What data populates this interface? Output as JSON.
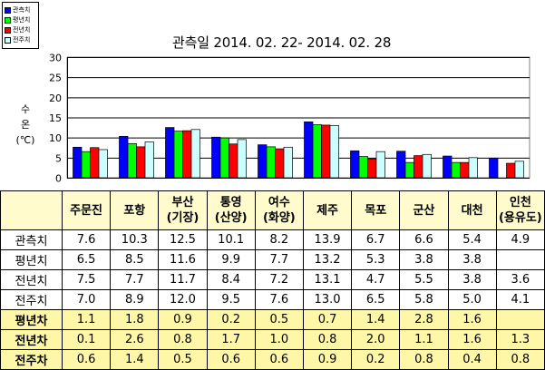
{
  "chart_data": {
    "type": "bar",
    "title": "관측일 2014. 02. 22- 2014. 02. 28",
    "ylabel": [
      "수",
      "온",
      "(℃)"
    ],
    "ylim": [
      0,
      30
    ],
    "yticks": [
      0,
      5,
      10,
      15,
      20,
      25,
      30
    ],
    "grid": true,
    "legend_position": "top-left",
    "categories": [
      "주문진",
      "포항",
      "부산 (기장)",
      "통영 (산양)",
      "여수 (화양)",
      "제주",
      "목포",
      "군산",
      "대천",
      "인천 (용유도)"
    ],
    "series": [
      {
        "name": "관측치",
        "color": "#0000ff",
        "values": [
          7.6,
          10.3,
          12.5,
          10.1,
          8.2,
          13.9,
          6.7,
          6.6,
          5.4,
          4.9
        ]
      },
      {
        "name": "평년치",
        "color": "#00ff00",
        "values": [
          6.5,
          8.5,
          11.6,
          9.9,
          7.7,
          13.2,
          5.3,
          3.8,
          3.8,
          null
        ]
      },
      {
        "name": "전년치",
        "color": "#ff0000",
        "values": [
          7.5,
          7.7,
          11.7,
          8.4,
          7.2,
          13.1,
          4.7,
          5.5,
          3.8,
          3.6
        ]
      },
      {
        "name": "전주치",
        "color": "#ccffff",
        "values": [
          7.0,
          8.9,
          12.0,
          9.5,
          7.6,
          13.0,
          6.5,
          5.8,
          5.0,
          4.1
        ]
      }
    ]
  },
  "table": {
    "headers": [
      [
        "주문진"
      ],
      [
        "포항"
      ],
      [
        "부산",
        "(기장)"
      ],
      [
        "통영",
        "(산양)"
      ],
      [
        "여수",
        "(화양)"
      ],
      [
        "제주"
      ],
      [
        "목포"
      ],
      [
        "군산"
      ],
      [
        "대천"
      ],
      [
        "인천",
        "(용유도)"
      ]
    ],
    "rows": [
      {
        "label": "관측치",
        "kind": "obs",
        "cells": [
          "7.6",
          "10.3",
          "12.5",
          "10.1",
          "8.2",
          "13.9",
          "6.7",
          "6.6",
          "5.4",
          "4.9"
        ]
      },
      {
        "label": "평년치",
        "kind": "obs",
        "cells": [
          "6.5",
          "8.5",
          "11.6",
          "9.9",
          "7.7",
          "13.2",
          "5.3",
          "3.8",
          "3.8",
          ""
        ]
      },
      {
        "label": "전년치",
        "kind": "obs",
        "cells": [
          "7.5",
          "7.7",
          "11.7",
          "8.4",
          "7.2",
          "13.1",
          "4.7",
          "5.5",
          "3.8",
          "3.6"
        ]
      },
      {
        "label": "전주치",
        "kind": "obs",
        "cells": [
          "7.0",
          "8.9",
          "12.0",
          "9.5",
          "7.6",
          "13.0",
          "6.5",
          "5.8",
          "5.0",
          "4.1"
        ]
      },
      {
        "label": "평년차",
        "kind": "diff",
        "cells": [
          "1.1",
          "1.8",
          "0.9",
          "0.2",
          "0.5",
          "0.7",
          "1.4",
          "2.8",
          "1.6",
          ""
        ]
      },
      {
        "label": "전년차",
        "kind": "diff",
        "cells": [
          "0.1",
          "2.6",
          "0.8",
          "1.7",
          "1.0",
          "0.8",
          "2.0",
          "1.1",
          "1.6",
          "1.3"
        ]
      },
      {
        "label": "전주차",
        "kind": "diff",
        "cells": [
          "0.6",
          "1.4",
          "0.5",
          "0.6",
          "0.6",
          "0.9",
          "0.2",
          "0.8",
          "0.4",
          "0.8"
        ]
      }
    ]
  }
}
